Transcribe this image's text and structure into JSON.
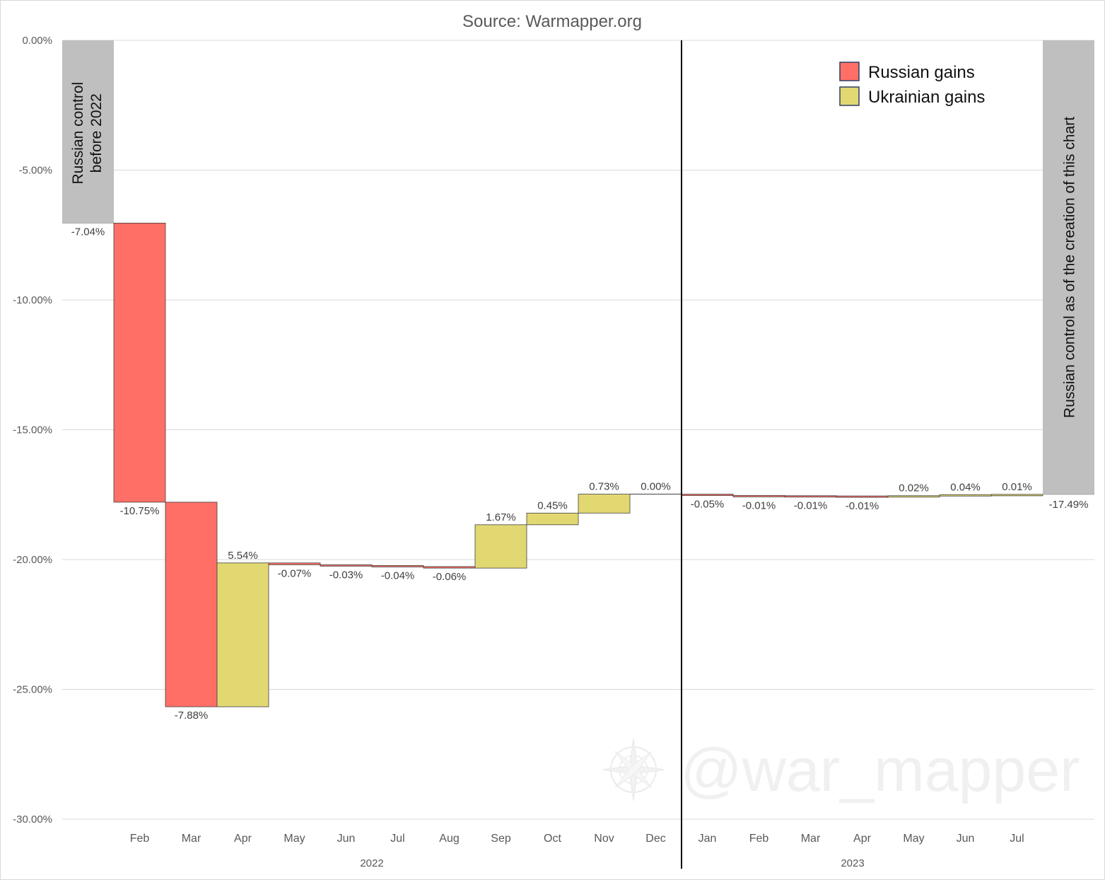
{
  "chart_data": {
    "type": "bar",
    "subtype": "waterfall",
    "title": "Source: Warmapper.org",
    "xlabel": "",
    "ylabel": "",
    "ylim": [
      -30,
      0
    ],
    "y_ticks": [
      "0.00%",
      "-5.00%",
      "-10.00%",
      "-15.00%",
      "-20.00%",
      "-25.00%",
      "-30.00%"
    ],
    "y_tick_values": [
      0,
      -5,
      -10,
      -15,
      -20,
      -25,
      -30
    ],
    "grid": true,
    "legend_position": "top-right",
    "legend": [
      {
        "name": "Russian gains",
        "color": "#ff6f66"
      },
      {
        "name": "Ukrainian gains",
        "color": "#e2d872"
      }
    ],
    "colors": {
      "russian": "#ff6f66",
      "ukrainian": "#e2d872",
      "total": "#bfbfbf",
      "bar_stroke": "#404040"
    },
    "start": {
      "value": -7.04,
      "label": "-7.04%",
      "text_line1": "Russian control",
      "text_line2": "before 2022"
    },
    "end": {
      "value": -17.49,
      "label": "-17.49%",
      "text": "Russian control as of the creation of this chart"
    },
    "years": [
      "2022",
      "2023"
    ],
    "steps": [
      {
        "year": "2022",
        "month": "Feb",
        "change": -10.75,
        "label": "-10.75%"
      },
      {
        "year": "2022",
        "month": "Mar",
        "change": -7.88,
        "label": "-7.88%"
      },
      {
        "year": "2022",
        "month": "Apr",
        "change": 5.54,
        "label": "5.54%"
      },
      {
        "year": "2022",
        "month": "May",
        "change": -0.07,
        "label": "-0.07%"
      },
      {
        "year": "2022",
        "month": "Jun",
        "change": -0.03,
        "label": "-0.03%"
      },
      {
        "year": "2022",
        "month": "Jul",
        "change": -0.04,
        "label": "-0.04%"
      },
      {
        "year": "2022",
        "month": "Aug",
        "change": -0.06,
        "label": "-0.06%"
      },
      {
        "year": "2022",
        "month": "Sep",
        "change": 1.67,
        "label": "1.67%"
      },
      {
        "year": "2022",
        "month": "Oct",
        "change": 0.45,
        "label": "0.45%"
      },
      {
        "year": "2022",
        "month": "Nov",
        "change": 0.73,
        "label": "0.73%"
      },
      {
        "year": "2022",
        "month": "Dec",
        "change": 0.0,
        "label": "0.00%"
      },
      {
        "year": "2023",
        "month": "Jan",
        "change": -0.05,
        "label": "-0.05%"
      },
      {
        "year": "2023",
        "month": "Feb",
        "change": -0.01,
        "label": "-0.01%"
      },
      {
        "year": "2023",
        "month": "Mar",
        "change": -0.01,
        "label": "-0.01%"
      },
      {
        "year": "2023",
        "month": "Apr",
        "change": -0.01,
        "label": "-0.01%"
      },
      {
        "year": "2023",
        "month": "May",
        "change": 0.02,
        "label": "0.02%"
      },
      {
        "year": "2023",
        "month": "Jun",
        "change": 0.04,
        "label": "0.04%"
      },
      {
        "year": "2023",
        "month": "Jul",
        "change": 0.01,
        "label": "0.01%"
      }
    ]
  },
  "watermark": "@war_mapper"
}
